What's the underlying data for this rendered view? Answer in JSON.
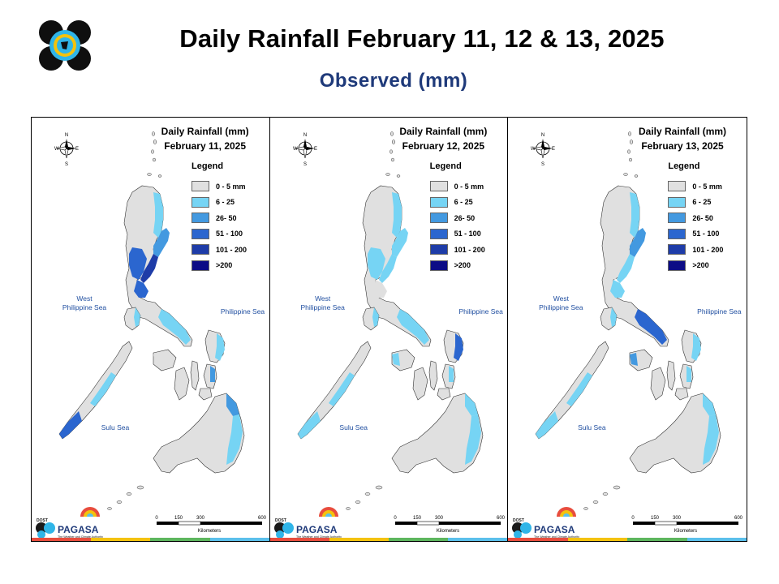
{
  "header": {
    "title": "Daily Rainfall February 11, 12 & 13, 2025",
    "subtitle": "Observed (mm)"
  },
  "colors": {
    "c0": "#e0e0e0",
    "c1": "#76d4f4",
    "c2": "#4399e0",
    "c3": "#2b66cf",
    "c4": "#1e3ca8",
    "c5": "#0c0c86"
  },
  "legend": {
    "title": "Legend",
    "items": [
      {
        "label": "0 - 5 mm",
        "color": "#e0e0e0"
      },
      {
        "label": "6 - 25",
        "color": "#76d4f4"
      },
      {
        "label": "26- 50",
        "color": "#4399e0"
      },
      {
        "label": "51 - 100",
        "color": "#2b66cf"
      },
      {
        "label": "101 - 200",
        "color": "#1e3ca8"
      },
      {
        "label": ">200",
        "color": "#0c0c86"
      }
    ]
  },
  "seas": {
    "west": "West\nPhilippine Sea",
    "east": "Philippine Sea",
    "sulu": "Sulu Sea"
  },
  "compass": {
    "n": "N",
    "s": "S",
    "e": "E",
    "w": "W"
  },
  "scale": {
    "ticks": [
      "0",
      "150",
      "300",
      "600"
    ],
    "unit": "Kilometers"
  },
  "brand": {
    "name": "PAGASA",
    "tagline": "The Weather and Climate Authority",
    "prefix": "DOST"
  },
  "panels": [
    {
      "title_line1": "Daily Rainfall (mm)",
      "title_line2": "February 11, 2025",
      "regions": {
        "n_luzon_east": "c1",
        "cagayan_coast": "c2",
        "aurora": "c4",
        "central_luzon": "c3",
        "manila": "c3",
        "bicol": "c1",
        "samar": "c1",
        "leyte": "c2",
        "palawan_south": "c3",
        "palawan_mid": "c1",
        "e_mindanao": "c1",
        "caraga": "c2",
        "panay_w": "c0",
        "negros_mindoro": "c1"
      }
    },
    {
      "title_line1": "Daily Rainfall (mm)",
      "title_line2": "February 12, 2025",
      "regions": {
        "n_luzon_east": "c1",
        "cagayan_coast": "c1",
        "aurora": "c1",
        "central_luzon": "c1",
        "manila": "c0",
        "bicol": "c1",
        "samar": "c3",
        "leyte": "c1",
        "palawan_south": "c1",
        "palawan_mid": "c1",
        "e_mindanao": "c1",
        "caraga": "c1",
        "panay_w": "c1",
        "negros_mindoro": "c1"
      }
    },
    {
      "title_line1": "Daily Rainfall (mm)",
      "title_line2": "February 13, 2025",
      "regions": {
        "n_luzon_east": "c1",
        "cagayan_coast": "c2",
        "aurora": "c1",
        "central_luzon": "c0",
        "manila": "c1",
        "bicol": "c3",
        "samar": "c1",
        "leyte": "c1",
        "palawan_south": "c1",
        "palawan_mid": "c1",
        "e_mindanao": "c1",
        "caraga": "c1",
        "panay_w": "c2",
        "negros_mindoro": "c1"
      }
    }
  ]
}
